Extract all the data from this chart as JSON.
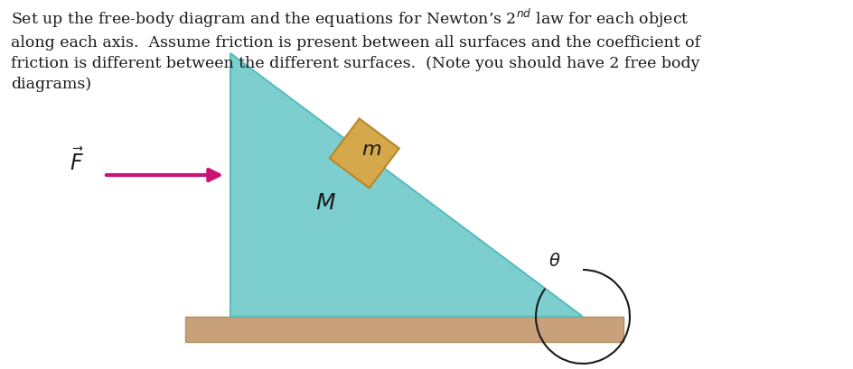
{
  "bg_color": "#ffffff",
  "triangle_color": "#7DCFCF",
  "triangle_edge_color": "#5BBCBC",
  "block_color": "#D4A84B",
  "block_edge_color": "#B8862A",
  "ground_color": "#C8A07A",
  "ground_edge_color": "#B09060",
  "arrow_color": "#CC1177",
  "text_color": "#1a1a1a",
  "fig_width": 9.44,
  "fig_height": 4.1,
  "dpi": 100,
  "text_fontsize": 12.5,
  "label_fontsize": 16,
  "F_fontsize": 17,
  "full_text": "Set up the free-body diagram and the equations for Newton’s 2$^{nd}$ law for each object\nalong each axis.  Assume friction is present between all surfaces and the coefficient of\nfriction is different between the different surfaces.  (Note you should have 2 free body\ndiagrams)"
}
